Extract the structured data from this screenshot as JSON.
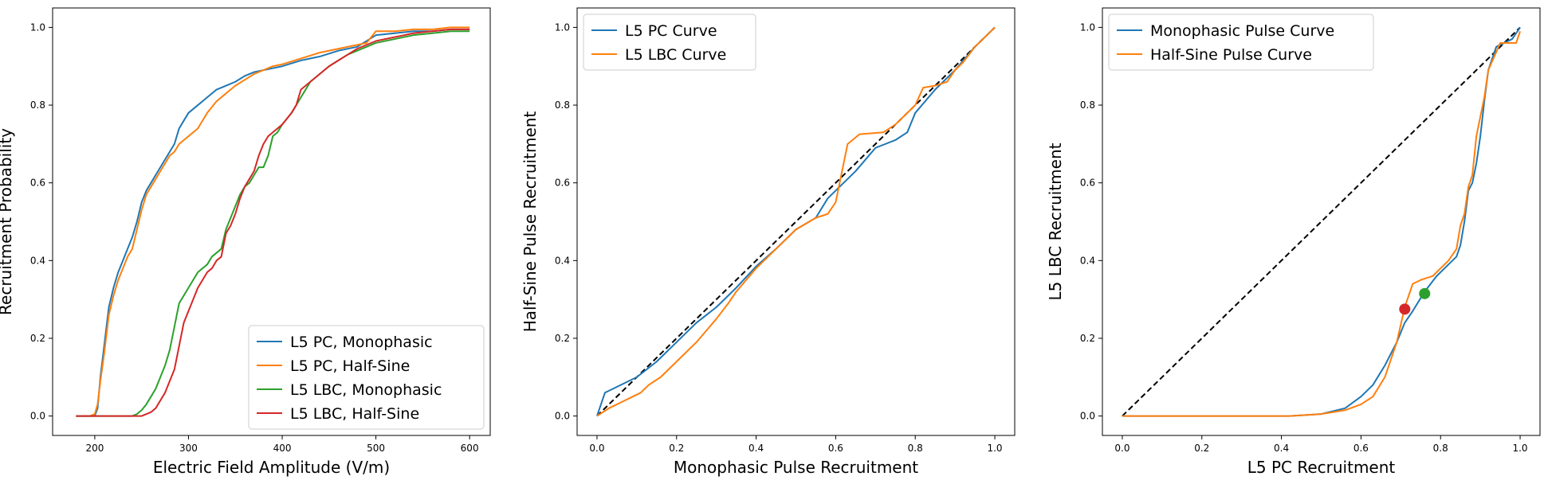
{
  "colors": {
    "blue": "#1f77b4",
    "orange": "#ff7f0e",
    "green": "#2ca02c",
    "red": "#d62728",
    "diagonal": "#000000"
  },
  "chart_data": [
    {
      "type": "line",
      "xlabel": "Electric Field Amplitude (V/m)",
      "ylabel": "Recruitment Probability",
      "xlim": [
        155,
        622
      ],
      "ylim": [
        -0.05,
        1.05
      ],
      "xticks": [
        200,
        300,
        400,
        500,
        600
      ],
      "yticks": [
        0.0,
        0.2,
        0.4,
        0.6,
        0.8,
        1.0
      ],
      "legend_position": "lower-right",
      "grid": false,
      "series": [
        {
          "name": "L5 PC, Monophasic",
          "color": "#1f77b4",
          "x": [
            180,
            195,
            200,
            203,
            206,
            210,
            215,
            220,
            225,
            230,
            235,
            240,
            245,
            250,
            255,
            260,
            265,
            270,
            275,
            280,
            285,
            290,
            295,
            300,
            310,
            320,
            330,
            340,
            350,
            360,
            370,
            380,
            390,
            400,
            420,
            440,
            460,
            480,
            500,
            520,
            540,
            560,
            580,
            600
          ],
          "y": [
            0,
            0,
            0,
            0.02,
            0.1,
            0.18,
            0.28,
            0.33,
            0.37,
            0.4,
            0.43,
            0.46,
            0.5,
            0.55,
            0.58,
            0.6,
            0.62,
            0.64,
            0.66,
            0.68,
            0.7,
            0.74,
            0.76,
            0.78,
            0.8,
            0.82,
            0.84,
            0.85,
            0.86,
            0.875,
            0.885,
            0.89,
            0.895,
            0.9,
            0.915,
            0.925,
            0.94,
            0.95,
            0.98,
            0.985,
            0.99,
            0.99,
            0.995,
            0.995
          ]
        },
        {
          "name": "L5 PC, Half-Sine",
          "color": "#ff7f0e",
          "x": [
            180,
            195,
            200,
            203,
            206,
            210,
            215,
            220,
            225,
            230,
            235,
            240,
            245,
            250,
            255,
            260,
            265,
            270,
            275,
            280,
            285,
            290,
            300,
            310,
            320,
            330,
            340,
            350,
            360,
            370,
            380,
            390,
            400,
            420,
            440,
            460,
            480,
            490,
            500,
            520,
            540,
            560,
            580,
            600
          ],
          "y": [
            0,
            0,
            0.005,
            0.03,
            0.09,
            0.16,
            0.26,
            0.31,
            0.35,
            0.38,
            0.41,
            0.43,
            0.48,
            0.53,
            0.57,
            0.59,
            0.61,
            0.63,
            0.65,
            0.67,
            0.68,
            0.7,
            0.72,
            0.74,
            0.78,
            0.81,
            0.83,
            0.85,
            0.865,
            0.88,
            0.89,
            0.9,
            0.905,
            0.92,
            0.935,
            0.945,
            0.955,
            0.96,
            0.99,
            0.99,
            0.995,
            0.995,
            1.0,
            1.0
          ]
        },
        {
          "name": "L5 LBC, Monophasic",
          "color": "#2ca02c",
          "x": [
            180,
            240,
            245,
            250,
            255,
            260,
            265,
            270,
            275,
            280,
            285,
            290,
            295,
            300,
            305,
            310,
            315,
            320,
            325,
            330,
            335,
            340,
            345,
            350,
            355,
            360,
            365,
            370,
            375,
            380,
            385,
            390,
            395,
            400,
            410,
            420,
            430,
            440,
            450,
            460,
            470,
            480,
            500,
            520,
            540,
            560,
            580,
            600
          ],
          "y": [
            0,
            0,
            0.005,
            0.015,
            0.03,
            0.05,
            0.07,
            0.1,
            0.13,
            0.17,
            0.23,
            0.29,
            0.31,
            0.33,
            0.35,
            0.37,
            0.38,
            0.39,
            0.41,
            0.42,
            0.43,
            0.48,
            0.51,
            0.54,
            0.57,
            0.59,
            0.6,
            0.62,
            0.64,
            0.64,
            0.67,
            0.72,
            0.73,
            0.75,
            0.78,
            0.82,
            0.86,
            0.88,
            0.9,
            0.915,
            0.93,
            0.94,
            0.96,
            0.97,
            0.98,
            0.985,
            0.99,
            0.99
          ]
        },
        {
          "name": "L5 LBC, Half-Sine",
          "color": "#d62728",
          "x": [
            180,
            250,
            255,
            260,
            265,
            270,
            275,
            280,
            285,
            290,
            295,
            300,
            305,
            310,
            315,
            320,
            325,
            330,
            335,
            340,
            345,
            350,
            355,
            360,
            365,
            370,
            375,
            380,
            385,
            390,
            400,
            410,
            415,
            420,
            430,
            440,
            450,
            460,
            470,
            480,
            500,
            520,
            540,
            560,
            580,
            600
          ],
          "y": [
            0,
            0,
            0.005,
            0.01,
            0.02,
            0.04,
            0.06,
            0.09,
            0.12,
            0.18,
            0.24,
            0.27,
            0.3,
            0.33,
            0.35,
            0.37,
            0.38,
            0.4,
            0.41,
            0.47,
            0.49,
            0.52,
            0.56,
            0.59,
            0.61,
            0.63,
            0.67,
            0.7,
            0.72,
            0.73,
            0.75,
            0.78,
            0.8,
            0.84,
            0.86,
            0.88,
            0.9,
            0.915,
            0.93,
            0.945,
            0.965,
            0.975,
            0.985,
            0.99,
            0.995,
            0.995
          ]
        }
      ]
    },
    {
      "type": "line",
      "xlabel": "Monophasic Pulse Recruitment",
      "ylabel": "Half-Sine Pulse Recruitment",
      "xlim": [
        -0.05,
        1.05
      ],
      "ylim": [
        -0.05,
        1.05
      ],
      "xticks": [
        0.0,
        0.2,
        0.4,
        0.6,
        0.8,
        1.0
      ],
      "yticks": [
        0.0,
        0.2,
        0.4,
        0.6,
        0.8,
        1.0
      ],
      "legend_position": "upper-left",
      "grid": false,
      "diagonal": true,
      "series": [
        {
          "name": "L5 PC Curve",
          "color": "#1f77b4",
          "x": [
            0,
            0.02,
            0.05,
            0.1,
            0.15,
            0.2,
            0.25,
            0.3,
            0.35,
            0.4,
            0.45,
            0.5,
            0.55,
            0.58,
            0.6,
            0.65,
            0.7,
            0.75,
            0.78,
            0.8,
            0.85,
            0.9,
            0.95,
            1.0
          ],
          "y": [
            0,
            0.06,
            0.075,
            0.1,
            0.14,
            0.19,
            0.24,
            0.28,
            0.33,
            0.385,
            0.43,
            0.48,
            0.51,
            0.56,
            0.58,
            0.63,
            0.69,
            0.71,
            0.73,
            0.78,
            0.84,
            0.89,
            0.95,
            1.0
          ]
        },
        {
          "name": "L5 LBC Curve",
          "color": "#ff7f0e",
          "x": [
            0,
            0.03,
            0.06,
            0.09,
            0.11,
            0.13,
            0.16,
            0.2,
            0.25,
            0.3,
            0.33,
            0.35,
            0.4,
            0.45,
            0.5,
            0.55,
            0.58,
            0.6,
            0.63,
            0.66,
            0.72,
            0.75,
            0.78,
            0.8,
            0.82,
            0.85,
            0.88,
            0.9,
            0.92,
            0.95,
            1.0
          ],
          "y": [
            0,
            0.02,
            0.035,
            0.05,
            0.06,
            0.08,
            0.1,
            0.14,
            0.19,
            0.25,
            0.29,
            0.32,
            0.38,
            0.43,
            0.48,
            0.51,
            0.52,
            0.55,
            0.7,
            0.725,
            0.73,
            0.75,
            0.78,
            0.8,
            0.845,
            0.85,
            0.86,
            0.89,
            0.91,
            0.95,
            1.0
          ]
        }
      ]
    },
    {
      "type": "line",
      "xlabel": "L5 PC Recruitment",
      "ylabel": "L5 LBC Recruitment",
      "xlim": [
        -0.05,
        1.05
      ],
      "ylim": [
        -0.05,
        1.05
      ],
      "xticks": [
        0.0,
        0.2,
        0.4,
        0.6,
        0.8,
        1.0
      ],
      "yticks": [
        0.0,
        0.2,
        0.4,
        0.6,
        0.8,
        1.0
      ],
      "legend_position": "upper-left",
      "grid": false,
      "diagonal": true,
      "series": [
        {
          "name": "Monophasic Pulse Curve",
          "color": "#1f77b4",
          "x": [
            0,
            0.42,
            0.5,
            0.56,
            0.6,
            0.63,
            0.66,
            0.69,
            0.71,
            0.73,
            0.76,
            0.79,
            0.82,
            0.84,
            0.85,
            0.86,
            0.87,
            0.88,
            0.89,
            0.9,
            0.91,
            0.92,
            0.94,
            0.96,
            0.98,
            1.0
          ],
          "y": [
            0,
            0,
            0.005,
            0.02,
            0.05,
            0.08,
            0.13,
            0.19,
            0.24,
            0.27,
            0.32,
            0.36,
            0.39,
            0.41,
            0.44,
            0.5,
            0.58,
            0.6,
            0.65,
            0.72,
            0.81,
            0.89,
            0.95,
            0.96,
            0.97,
            1.0
          ]
        },
        {
          "name": "Half-Sine Pulse Curve",
          "color": "#ff7f0e",
          "x": [
            0,
            0.42,
            0.5,
            0.56,
            0.6,
            0.63,
            0.66,
            0.69,
            0.71,
            0.72,
            0.73,
            0.75,
            0.78,
            0.8,
            0.82,
            0.84,
            0.85,
            0.86,
            0.87,
            0.88,
            0.89,
            0.9,
            0.91,
            0.92,
            0.95,
            0.97,
            0.99,
            1.0
          ],
          "y": [
            0,
            0,
            0.005,
            0.015,
            0.03,
            0.05,
            0.1,
            0.19,
            0.28,
            0.31,
            0.34,
            0.35,
            0.36,
            0.38,
            0.4,
            0.43,
            0.49,
            0.52,
            0.59,
            0.62,
            0.72,
            0.77,
            0.82,
            0.89,
            0.96,
            0.96,
            0.96,
            0.99
          ]
        }
      ],
      "markers": [
        {
          "x": 0.71,
          "y": 0.275,
          "color": "#d62728"
        },
        {
          "x": 0.76,
          "y": 0.315,
          "color": "#2ca02c"
        }
      ]
    }
  ]
}
